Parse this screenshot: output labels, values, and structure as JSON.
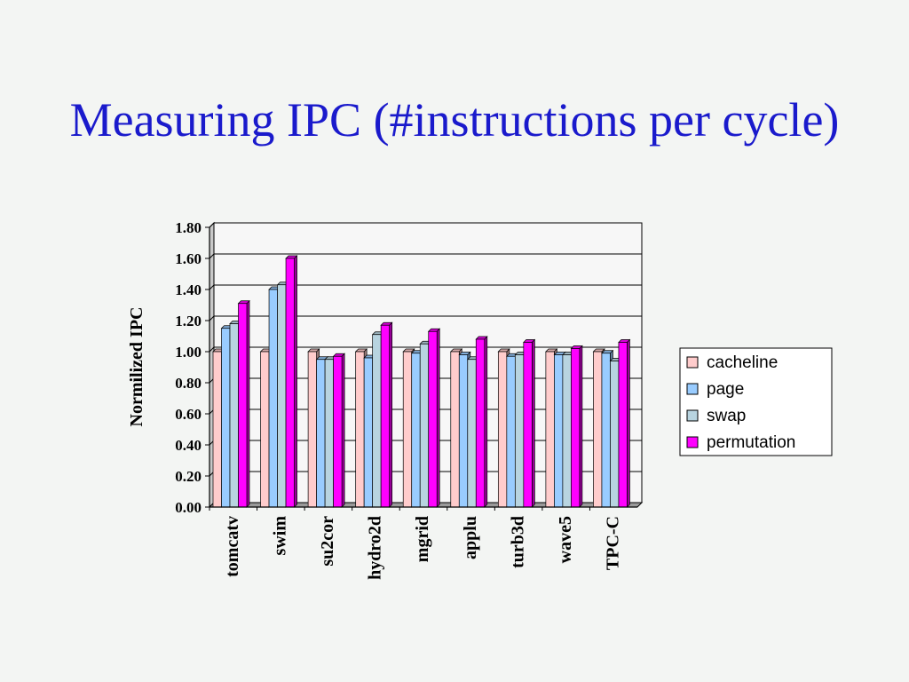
{
  "slide": {
    "title": "Measuring IPC (#instructions per cycle)"
  },
  "colors": {
    "title": "#1a1acc",
    "background": "#f3f5f3",
    "plot_area": "#f7f7f7"
  },
  "chart_data": {
    "type": "bar",
    "title": "",
    "xlabel": "",
    "ylabel": "Normilized IPC",
    "ylim": [
      0,
      1.8
    ],
    "ytick_step": 0.2,
    "ytick_labels": [
      "0.00",
      "0.20",
      "0.40",
      "0.60",
      "0.80",
      "1.00",
      "1.20",
      "1.40",
      "1.60",
      "1.80"
    ],
    "grid": true,
    "legend_position": "right",
    "categories": [
      "tomcatv",
      "swim",
      "su2cor",
      "hydro2d",
      "mgrid",
      "applu",
      "turb3d",
      "wave5",
      "TPC-C"
    ],
    "series": [
      {
        "name": "cacheline",
        "color": "#ffcccc",
        "values": [
          1.0,
          1.0,
          1.0,
          1.0,
          1.0,
          1.0,
          1.0,
          1.0,
          1.0
        ]
      },
      {
        "name": "page",
        "color": "#99ccff",
        "values": [
          1.15,
          1.4,
          0.95,
          0.96,
          0.99,
          0.98,
          0.97,
          0.98,
          0.99
        ]
      },
      {
        "name": "swap",
        "color": "#b8d4e0",
        "values": [
          1.18,
          1.43,
          0.95,
          1.11,
          1.05,
          0.95,
          0.98,
          0.98,
          0.94
        ]
      },
      {
        "name": "permutation",
        "color": "#ff00ff",
        "values": [
          1.31,
          1.6,
          0.97,
          1.17,
          1.13,
          1.08,
          1.06,
          1.02,
          1.06
        ]
      }
    ]
  }
}
